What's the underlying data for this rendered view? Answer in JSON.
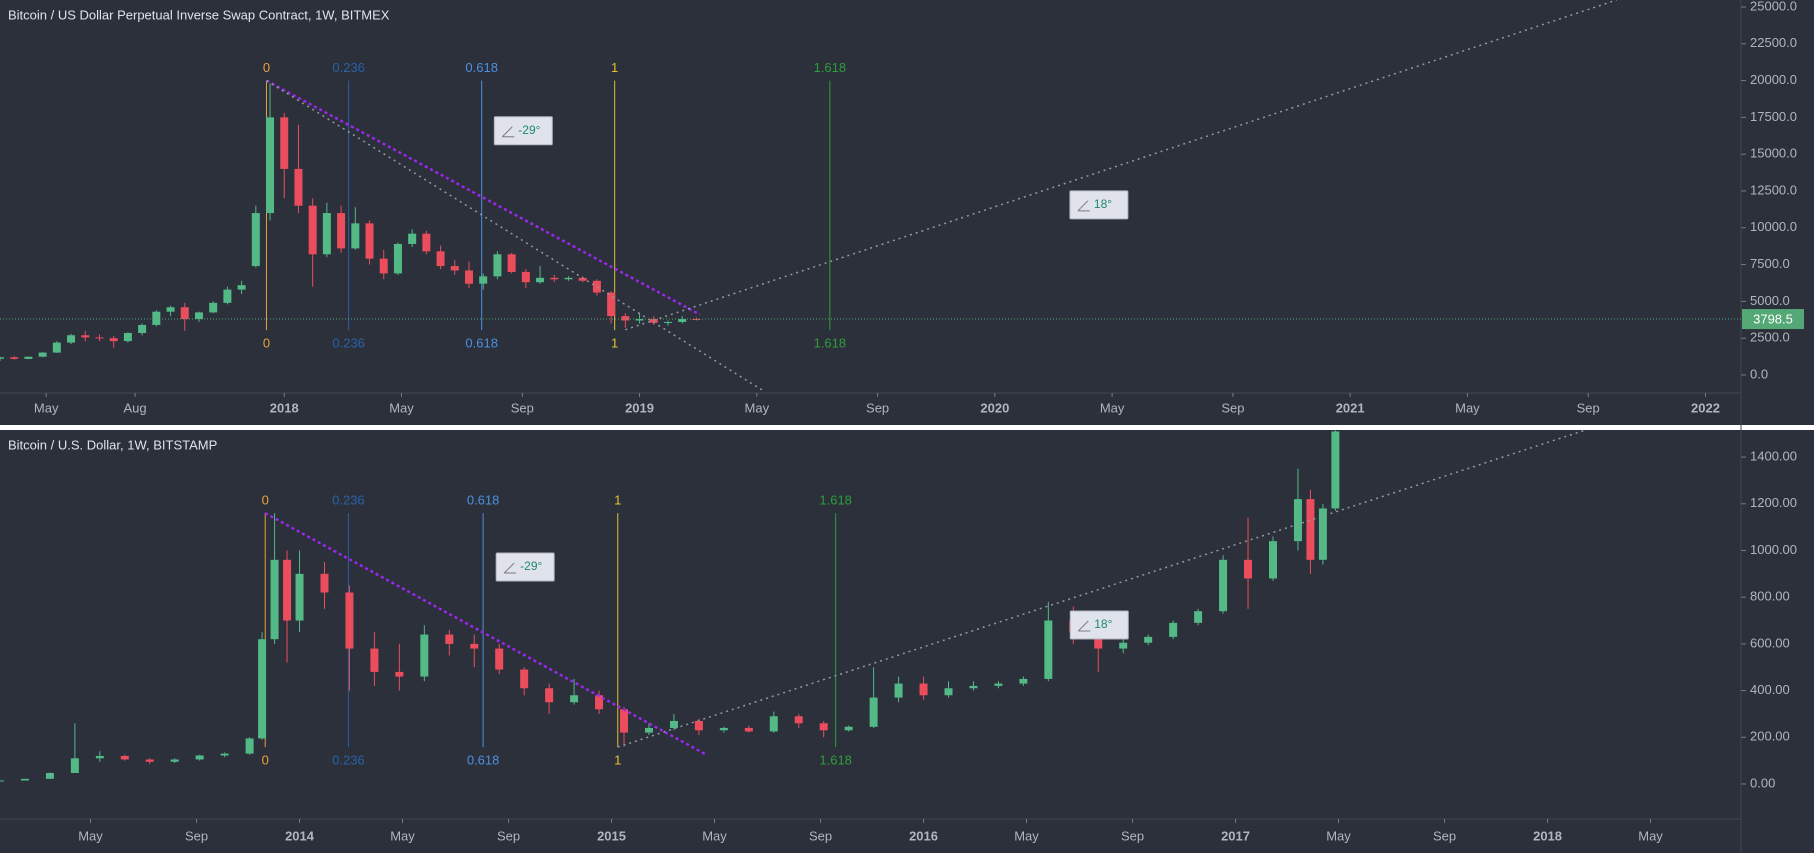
{
  "chart_data": [
    {
      "type": "candlestick",
      "title": "Bitcoin / US Dollar Perpetual Inverse Swap Contract, 1W, BITMEX",
      "up_color": "#53b987",
      "down_color": "#eb4d5c",
      "x": [
        2017.2,
        2017.24,
        2017.28,
        2017.32,
        2017.36,
        2017.4,
        2017.44,
        2017.48,
        2017.52,
        2017.56,
        2017.6,
        2017.64,
        2017.68,
        2017.72,
        2017.76,
        2017.8,
        2017.84,
        2017.88,
        2017.92,
        2017.96,
        2018.0,
        2018.04,
        2018.08,
        2018.12,
        2018.16,
        2018.2,
        2018.24,
        2018.28,
        2018.32,
        2018.36,
        2018.4,
        2018.44,
        2018.48,
        2018.52,
        2018.56,
        2018.6,
        2018.64,
        2018.68,
        2018.72,
        2018.76,
        2018.8,
        2018.84,
        2018.88,
        2018.92,
        2018.96,
        2019.0,
        2019.04,
        2019.08,
        2019.12,
        2019.16
      ],
      "open": [
        1100,
        1200,
        1090,
        1240,
        1520,
        2200,
        2700,
        2550,
        2500,
        2300,
        2850,
        3400,
        4300,
        4600,
        3800,
        4250,
        4900,
        5800,
        7400,
        11000,
        17500,
        14000,
        11500,
        8200,
        11000,
        8600,
        10300,
        7900,
        6900,
        8900,
        9600,
        8400,
        7400,
        7100,
        6200,
        6700,
        8200,
        7000,
        6300,
        6600,
        6500,
        6600,
        6400,
        5600,
        4000,
        3700,
        3800,
        3550,
        3600,
        3800
      ],
      "high": [
        1250,
        1280,
        1250,
        1550,
        2300,
        2800,
        3000,
        2750,
        2650,
        2900,
        3500,
        4400,
        4700,
        4900,
        4300,
        5000,
        6000,
        6400,
        11500,
        19800,
        17800,
        17000,
        12000,
        11700,
        11500,
        11400,
        10500,
        8500,
        9000,
        9900,
        9800,
        8800,
        7800,
        7700,
        6900,
        8400,
        8300,
        7200,
        7400,
        6800,
        6700,
        6700,
        6500,
        5700,
        4200,
        4200,
        4000,
        3700,
        4000,
        3900
      ],
      "low": [
        950,
        1050,
        1080,
        1200,
        1500,
        2100,
        2300,
        2300,
        1850,
        2200,
        2700,
        3300,
        4000,
        3000,
        3600,
        4200,
        4800,
        5500,
        7300,
        10500,
        12000,
        11000,
        6000,
        8000,
        8300,
        8500,
        7500,
        6500,
        6800,
        8700,
        8200,
        7200,
        6800,
        5900,
        5800,
        6500,
        6900,
        5900,
        6200,
        6300,
        6400,
        6300,
        5400,
        3500,
        3200,
        3500,
        3400,
        3350,
        3500,
        3700
      ],
      "close": [
        1200,
        1090,
        1240,
        1520,
        2200,
        2700,
        2550,
        2500,
        2300,
        2850,
        3400,
        4300,
        4600,
        3800,
        4250,
        4900,
        5800,
        6100,
        11000,
        17500,
        14000,
        11500,
        8200,
        11000,
        8600,
        10300,
        7900,
        6900,
        8900,
        9600,
        8400,
        7400,
        7100,
        6200,
        6700,
        8200,
        7000,
        6300,
        6600,
        6500,
        6600,
        6400,
        5600,
        4000,
        3700,
        3800,
        3550,
        3600,
        3800,
        3798.5
      ],
      "last_price": 3798.5,
      "last_price_color": "#53a876",
      "xlim": [
        2017.2,
        2022.1
      ],
      "ylim": [
        -1225,
        25475
      ],
      "xticks": [
        {
          "value": 2017.33,
          "label": "May"
        },
        {
          "value": 2017.58,
          "label": "Aug"
        },
        2018,
        {
          "value": 2018.33,
          "label": "May"
        },
        {
          "value": 2018.67,
          "label": "Sep"
        },
        2019,
        {
          "value": 2019.33,
          "label": "May"
        },
        {
          "value": 2019.67,
          "label": "Sep"
        },
        2020,
        {
          "value": 2020.33,
          "label": "May"
        },
        {
          "value": 2020.67,
          "label": "Sep"
        },
        2021,
        {
          "value": 2021.33,
          "label": "May"
        },
        {
          "value": 2021.67,
          "label": "Sep"
        },
        2022
      ],
      "yticks": [
        {
          "value": 0,
          "label": "0.0"
        },
        {
          "value": 2500,
          "label": "2500.0"
        },
        {
          "value": 5000,
          "label": "5000.0"
        },
        {
          "value": 7500,
          "label": "7500.0"
        },
        {
          "value": 10000,
          "label": "10000.0"
        },
        {
          "value": 12500,
          "label": "12500.0"
        },
        {
          "value": 15000,
          "label": "15000.0"
        },
        {
          "value": 17500,
          "label": "17500.0"
        },
        {
          "value": 20000,
          "label": "20000.0"
        },
        {
          "value": 22500,
          "label": "22500.0"
        },
        {
          "value": 25000,
          "label": "25000.0"
        }
      ],
      "fib": {
        "levels": [
          0,
          0.236,
          0.618,
          1,
          1.618
        ],
        "colors": [
          "#e8a23a",
          "#2962a8",
          "#4d8fe0",
          "#e6c12e",
          "#2e9e3a"
        ],
        "time_range": [
          2017.95,
          2018.93
        ],
        "price_range": [
          20000,
          3050
        ]
      },
      "trendlines": [
        {
          "color": "#9c27f0",
          "x": [
            2017.95,
            2019.17
          ],
          "y": [
            20000,
            4100
          ]
        },
        {
          "color": "#9598a1",
          "x": [
            2017.95,
            2019.35
          ],
          "y": [
            20000,
            -1100
          ]
        },
        {
          "color": "#9598a1",
          "x": [
            2018.96,
            2021.75
          ],
          "y": [
            3075,
            25476
          ]
        }
      ],
      "angles": [
        {
          "text": "-29°",
          "x": 2018.67,
          "y": 16590
        },
        {
          "text": "18°",
          "x": 2020.29,
          "y": 11560
        }
      ]
    },
    {
      "type": "candlestick",
      "title": "Bitcoin / U.S. Dollar, 1W, BITSTAMP",
      "up_color": "#53b987",
      "down_color": "#eb4d5c",
      "x": [
        2013.04,
        2013.12,
        2013.2,
        2013.28,
        2013.36,
        2013.44,
        2013.52,
        2013.6,
        2013.68,
        2013.76,
        2013.84,
        2013.88,
        2013.92,
        2013.96,
        2014.0,
        2014.08,
        2014.16,
        2014.24,
        2014.32,
        2014.4,
        2014.48,
        2014.56,
        2014.64,
        2014.72,
        2014.8,
        2014.88,
        2014.96,
        2015.04,
        2015.12,
        2015.2,
        2015.28,
        2015.36,
        2015.44,
        2015.52,
        2015.6,
        2015.68,
        2015.76,
        2015.84,
        2015.92,
        2016.0,
        2016.08,
        2016.16,
        2016.24,
        2016.32,
        2016.4,
        2016.48,
        2016.56,
        2016.64,
        2016.72,
        2016.8,
        2016.88,
        2016.96,
        2017.04,
        2017.12,
        2017.2,
        2017.24,
        2017.28,
        2017.32
      ],
      "open": [
        13,
        15,
        22,
        47,
        110,
        120,
        105,
        95,
        105,
        122,
        130,
        195,
        620,
        960,
        700,
        900,
        820,
        580,
        480,
        460,
        640,
        600,
        580,
        490,
        410,
        350,
        380,
        320,
        220,
        240,
        270,
        230,
        240,
        225,
        290,
        260,
        230,
        245,
        370,
        430,
        380,
        410,
        420,
        430,
        450,
        700,
        650,
        580,
        605,
        630,
        690,
        740,
        960,
        880,
        1040,
        1220,
        960,
        1180
      ],
      "high": [
        16,
        22,
        50,
        260,
        140,
        125,
        110,
        110,
        125,
        135,
        200,
        650,
        1160,
        1000,
        1000,
        950,
        850,
        650,
        600,
        680,
        660,
        640,
        600,
        500,
        430,
        450,
        400,
        330,
        260,
        300,
        280,
        245,
        250,
        310,
        300,
        270,
        250,
        500,
        460,
        460,
        440,
        440,
        440,
        460,
        780,
        760,
        670,
        620,
        640,
        700,
        750,
        980,
        1140,
        1060,
        1350,
        1260,
        1200,
        1515
      ],
      "low": [
        13,
        15,
        22,
        50,
        95,
        100,
        85,
        90,
        100,
        115,
        125,
        190,
        600,
        520,
        650,
        750,
        400,
        420,
        400,
        440,
        550,
        500,
        470,
        380,
        300,
        340,
        300,
        160,
        210,
        230,
        210,
        220,
        220,
        220,
        240,
        200,
        225,
        240,
        350,
        360,
        370,
        400,
        410,
        420,
        440,
        600,
        480,
        560,
        595,
        620,
        680,
        730,
        750,
        870,
        1000,
        900,
        940,
        1170
      ],
      "close": [
        15,
        22,
        47,
        110,
        120,
        105,
        95,
        105,
        122,
        130,
        195,
        620,
        960,
        700,
        900,
        820,
        580,
        480,
        460,
        640,
        600,
        580,
        490,
        410,
        350,
        380,
        320,
        220,
        240,
        270,
        230,
        240,
        225,
        290,
        260,
        230,
        245,
        370,
        430,
        380,
        410,
        420,
        430,
        450,
        700,
        650,
        580,
        605,
        630,
        690,
        740,
        960,
        880,
        1040,
        1220,
        960,
        1180,
        1510
      ],
      "xlim": [
        2013.04,
        2018.62
      ],
      "ylim": [
        -150,
        1516
      ],
      "xticks": [
        {
          "value": 2013.33,
          "label": "May"
        },
        {
          "value": 2013.67,
          "label": "Sep"
        },
        2014,
        {
          "value": 2014.33,
          "label": "May"
        },
        {
          "value": 2014.67,
          "label": "Sep"
        },
        2015,
        {
          "value": 2015.33,
          "label": "May"
        },
        {
          "value": 2015.67,
          "label": "Sep"
        },
        2016,
        {
          "value": 2016.33,
          "label": "May"
        },
        {
          "value": 2016.67,
          "label": "Sep"
        },
        2017,
        {
          "value": 2017.33,
          "label": "May"
        },
        {
          "value": 2017.67,
          "label": "Sep"
        },
        2018,
        {
          "value": 2018.33,
          "label": "May"
        }
      ],
      "yticks": [
        {
          "value": 0,
          "label": "0.00"
        },
        {
          "value": 200,
          "label": "200.00"
        },
        {
          "value": 400,
          "label": "400.00"
        },
        {
          "value": 600,
          "label": "600.00"
        },
        {
          "value": 800,
          "label": "800.00"
        },
        {
          "value": 1000,
          "label": "1000.00"
        },
        {
          "value": 1200,
          "label": "1200.00"
        },
        {
          "value": 1400,
          "label": "1400.00"
        }
      ],
      "fib": {
        "levels": [
          0,
          0.236,
          0.618,
          1,
          1.618
        ],
        "colors": [
          "#e8a23a",
          "#2962a8",
          "#4d8fe0",
          "#e6c12e",
          "#2e9e3a"
        ],
        "time_range": [
          2013.89,
          2015.02
        ],
        "price_range": [
          1160,
          158
        ]
      },
      "trendlines": [
        {
          "color": "#9c27f0",
          "x": [
            2013.89,
            2015.3
          ],
          "y": [
            1160,
            128
          ]
        },
        {
          "color": "#9598a1",
          "x": [
            2015.02,
            2018.14
          ],
          "y": [
            158,
            1524
          ]
        }
      ],
      "angles": [
        {
          "text": "-29°",
          "x": 2014.72,
          "y": 929
        },
        {
          "text": "18°",
          "x": 2016.56,
          "y": 681
        }
      ]
    }
  ]
}
